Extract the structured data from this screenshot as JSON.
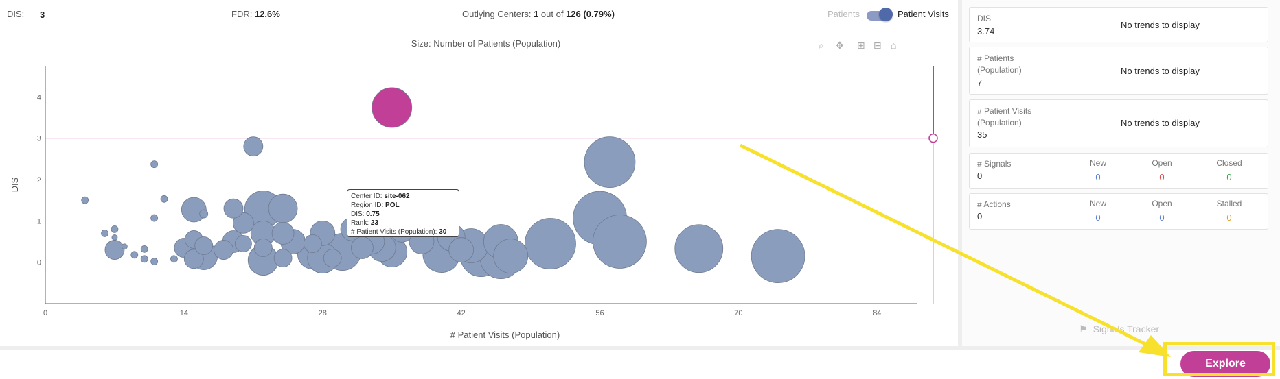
{
  "topbar": {
    "dis_label": "DIS:",
    "dis_value": "3",
    "fdr_label": "FDR:",
    "fdr_value": "12.6%",
    "outlying_label": "Outlying Centers:",
    "outlying_count": "1",
    "outlying_mid": "out of",
    "outlying_total": "126 (0.79%)",
    "toggle_left": "Patients",
    "toggle_right": "Patient Visits"
  },
  "chart_data": {
    "type": "scatter",
    "title": "Size: Number of Patients (Population)",
    "xlabel": "# Patient Visits (Population)",
    "ylabel": "DIS",
    "xlim": [
      0,
      88
    ],
    "ylim": [
      -1,
      4.75
    ],
    "x_ticks": [
      0,
      14,
      28,
      42,
      56,
      70,
      84
    ],
    "y_ticks": [
      0,
      1,
      2,
      3,
      4
    ],
    "threshold": 3,
    "colors": {
      "bubble": "#8a9dbd",
      "outlier": "#c23f97",
      "threshold": "#c23f97"
    },
    "points": [
      {
        "x": 35,
        "y": 3.74,
        "size": 29,
        "outlier": true
      },
      {
        "x": 21,
        "y": 2.8,
        "size": 14
      },
      {
        "x": 11,
        "y": 2.37,
        "size": 5
      },
      {
        "x": 4,
        "y": 1.5,
        "size": 5
      },
      {
        "x": 12,
        "y": 1.53,
        "size": 5
      },
      {
        "x": 11,
        "y": 1.07,
        "size": 5
      },
      {
        "x": 7,
        "y": 0.8,
        "size": 5
      },
      {
        "x": 6,
        "y": 0.7,
        "size": 5
      },
      {
        "x": 7,
        "y": 0.6,
        "size": 4
      },
      {
        "x": 8,
        "y": 0.38,
        "size": 4
      },
      {
        "x": 10,
        "y": 0.32,
        "size": 5
      },
      {
        "x": 9,
        "y": 0.18,
        "size": 5
      },
      {
        "x": 10,
        "y": 0.08,
        "size": 5
      },
      {
        "x": 11,
        "y": 0.02,
        "size": 5
      },
      {
        "x": 13,
        "y": 0.08,
        "size": 5
      },
      {
        "x": 7,
        "y": 0.3,
        "size": 14
      },
      {
        "x": 15,
        "y": 1.27,
        "size": 18
      },
      {
        "x": 16,
        "y": 1.17,
        "size": 6
      },
      {
        "x": 19,
        "y": 1.3,
        "size": 14
      },
      {
        "x": 22,
        "y": 1.28,
        "size": 27
      },
      {
        "x": 24,
        "y": 1.3,
        "size": 21
      },
      {
        "x": 15,
        "y": 0.55,
        "size": 13
      },
      {
        "x": 14,
        "y": 0.35,
        "size": 14
      },
      {
        "x": 16,
        "y": 0.4,
        "size": 13
      },
      {
        "x": 16,
        "y": 0.15,
        "size": 20
      },
      {
        "x": 15,
        "y": 0.08,
        "size": 14
      },
      {
        "x": 18,
        "y": 0.3,
        "size": 14
      },
      {
        "x": 19,
        "y": 0.5,
        "size": 16
      },
      {
        "x": 20,
        "y": 0.45,
        "size": 12
      },
      {
        "x": 20,
        "y": 0.95,
        "size": 15
      },
      {
        "x": 22,
        "y": 0.7,
        "size": 18
      },
      {
        "x": 22,
        "y": 0.35,
        "size": 13
      },
      {
        "x": 22,
        "y": 0.05,
        "size": 22
      },
      {
        "x": 24,
        "y": 0.7,
        "size": 16
      },
      {
        "x": 25,
        "y": 0.5,
        "size": 18
      },
      {
        "x": 24,
        "y": 0.1,
        "size": 13
      },
      {
        "x": 27,
        "y": 0.45,
        "size": 13
      },
      {
        "x": 28,
        "y": 0.7,
        "size": 18
      },
      {
        "x": 27,
        "y": 0.2,
        "size": 22
      },
      {
        "x": 28,
        "y": 0.1,
        "size": 22
      },
      {
        "x": 29,
        "y": 0.1,
        "size": 13
      },
      {
        "x": 30,
        "y": 0.25,
        "size": 27
      },
      {
        "x": 31,
        "y": 0.8,
        "size": 17
      },
      {
        "x": 32,
        "y": 0.35,
        "size": 16
      },
      {
        "x": 33,
        "y": 0.5,
        "size": 18
      },
      {
        "x": 34,
        "y": 0.35,
        "size": 20
      },
      {
        "x": 35,
        "y": 0.25,
        "size": 22
      },
      {
        "x": 36,
        "y": 0.75,
        "size": 16
      },
      {
        "x": 38,
        "y": 0.5,
        "size": 18
      },
      {
        "x": 40,
        "y": 0.2,
        "size": 27
      },
      {
        "x": 41,
        "y": 0.6,
        "size": 20
      },
      {
        "x": 42,
        "y": 0.3,
        "size": 18
      },
      {
        "x": 43,
        "y": 0.4,
        "size": 25
      },
      {
        "x": 44,
        "y": 0.15,
        "size": 30
      },
      {
        "x": 46,
        "y": 0.5,
        "size": 25
      },
      {
        "x": 46,
        "y": 0.1,
        "size": 30
      },
      {
        "x": 47,
        "y": 0.15,
        "size": 25
      },
      {
        "x": 51,
        "y": 0.45,
        "size": 37
      },
      {
        "x": 56,
        "y": 1.07,
        "size": 39
      },
      {
        "x": 57,
        "y": 2.42,
        "size": 37
      },
      {
        "x": 58,
        "y": 0.5,
        "size": 39
      },
      {
        "x": 66,
        "y": 0.33,
        "size": 35
      },
      {
        "x": 74,
        "y": 0.15,
        "size": 39
      }
    ],
    "tooltip": {
      "center_label": "Center ID:",
      "center_value": "site-062",
      "region_label": "Region ID:",
      "region_value": "POL",
      "dis_label": "DIS:",
      "dis_value": "0.75",
      "rank_label": "Rank:",
      "rank_value": "23",
      "visits_label": "# Patient Visits (Population):",
      "visits_value": "30"
    }
  },
  "right_panel": {
    "dis": {
      "label": "DIS",
      "value": "3.74",
      "trend": "No trends to display"
    },
    "patients": {
      "label_1": "# Patients",
      "label_2": "(Population)",
      "value": "7",
      "trend": "No trends to display"
    },
    "visits": {
      "label_1": "# Patient Visits",
      "label_2": "(Population)",
      "value": "35",
      "trend": "No trends to display"
    },
    "signals": {
      "label": "# Signals",
      "value": "0",
      "new_label": "New",
      "new_value": "0",
      "open_label": "Open",
      "open_value": "0",
      "closed_label": "Closed",
      "closed_value": "0"
    },
    "actions": {
      "label": "# Actions",
      "value": "0",
      "new_label": "New",
      "new_value": "0",
      "open_label": "Open",
      "open_value": "0",
      "stalled_label": "Stalled",
      "stalled_value": "0"
    },
    "signals_tracker": "Signals Tracker",
    "colors": {
      "new": "#5b7fd4",
      "open_signals": "#e05050",
      "closed": "#3aa34a",
      "open_actions": "#5b7fd4",
      "stalled": "#e0a020"
    }
  },
  "explore_button": "Explore",
  "annotation": {
    "color": "#f7e12d"
  }
}
